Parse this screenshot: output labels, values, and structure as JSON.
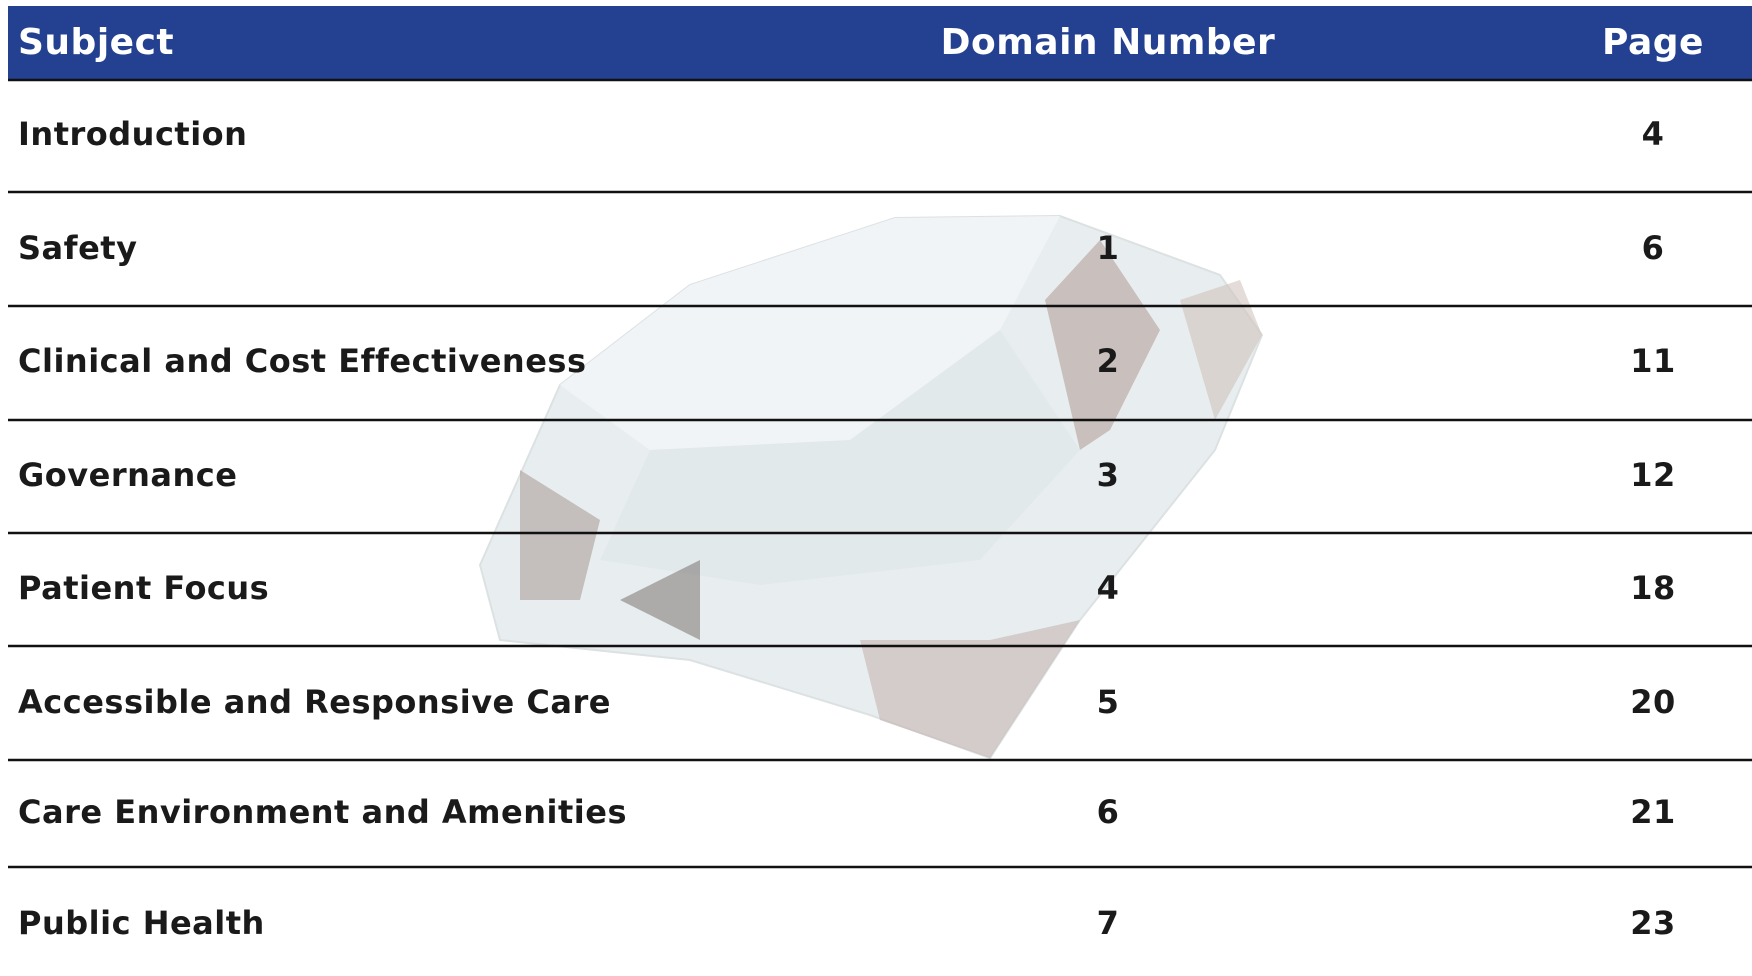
{
  "table": {
    "header": [
      "Subject",
      "Domain Number",
      "Page"
    ],
    "rows": [
      {
        "subject": "Introduction",
        "page": 4
      },
      {
        "subject": "Safety",
        "domain": 1,
        "page": 6
      },
      {
        "subject": "Clinical and Cost Effectiveness",
        "domain": 2,
        "page": 11
      },
      {
        "subject": "Governance",
        "domain": 3,
        "page": 12
      },
      {
        "subject": "Patient Focus",
        "domain": 4,
        "page": 18
      },
      {
        "subject": "Accessible and Responsive Care",
        "domain": 5,
        "page": 20
      },
      {
        "subject": "Care Environment and Amenities",
        "domain": 6,
        "page": 21
      },
      {
        "subject": "Public Health",
        "domain": 7,
        "page": 23
      }
    ]
  }
}
